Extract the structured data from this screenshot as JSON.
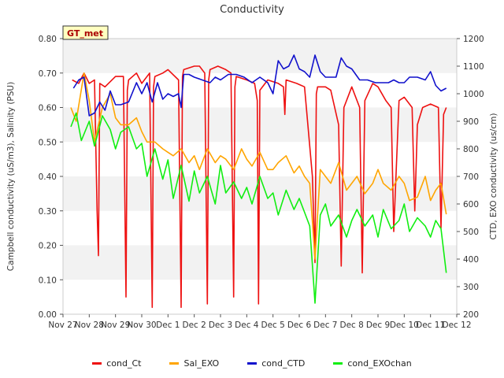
{
  "chart_data": {
    "type": "line",
    "title": "Conductivity",
    "badge": "GT_met",
    "ylabel_left": "Campbell conductivity (uS/m3), Salinity (PSU)",
    "ylabel_right": "CTD, EXO conductivity (us/cm)",
    "ylim_left": [
      0.0,
      0.8
    ],
    "ylim_right": [
      200,
      1200
    ],
    "yticks_left": [
      "0.00",
      "0.10",
      "0.20",
      "0.30",
      "0.40",
      "0.50",
      "0.60",
      "0.70",
      "0.80"
    ],
    "yticks_right": [
      "200",
      "300",
      "400",
      "500",
      "600",
      "700",
      "800",
      "900",
      "1000",
      "1100",
      "1200"
    ],
    "xlim": [
      0,
      15
    ],
    "xticks": [
      "Nov 27",
      "Nov 28",
      "Nov 29",
      "Nov 30",
      "Dec 1",
      "Dec 2",
      "Dec 3",
      "Dec 4",
      "Dec 5",
      "Dec 6",
      "Dec 7",
      "Dec 8",
      "Dec 9",
      "Dec 10",
      "Dec 11",
      "Dec 12"
    ],
    "grid": "horizontal bands",
    "legend_position": "bottom",
    "series": [
      {
        "name": "cond_Ct",
        "axis": "left",
        "color": "#ee1111",
        "x": [
          0.35,
          0.6,
          0.8,
          1.0,
          1.2,
          1.3,
          1.35,
          1.4,
          1.6,
          2.0,
          2.3,
          2.4,
          2.45,
          2.5,
          2.8,
          3.0,
          3.3,
          3.4,
          3.45,
          3.5,
          3.8,
          4.0,
          4.4,
          4.5,
          4.55,
          4.6,
          5.0,
          5.2,
          5.4,
          5.5,
          5.55,
          5.6,
          5.9,
          6.2,
          6.4,
          6.5,
          6.55,
          6.6,
          7.0,
          7.3,
          7.4,
          7.45,
          7.5,
          7.8,
          8.2,
          8.4,
          8.45,
          8.5,
          8.9,
          9.2,
          9.5,
          9.6,
          9.65,
          9.7,
          10.0,
          10.2,
          10.5,
          10.6,
          10.7,
          11.0,
          11.3,
          11.4,
          11.5,
          11.8,
          12.0,
          12.3,
          12.5,
          12.6,
          12.8,
          13.0,
          13.3,
          13.4,
          13.5,
          13.7,
          14.0,
          14.3,
          14.4,
          14.5,
          14.6
        ],
        "y": [
          0.68,
          0.67,
          0.7,
          0.67,
          0.68,
          0.3,
          0.17,
          0.67,
          0.66,
          0.69,
          0.69,
          0.05,
          0.65,
          0.68,
          0.7,
          0.67,
          0.7,
          0.02,
          0.66,
          0.69,
          0.7,
          0.71,
          0.68,
          0.02,
          0.69,
          0.71,
          0.72,
          0.72,
          0.7,
          0.03,
          0.68,
          0.71,
          0.72,
          0.71,
          0.7,
          0.05,
          0.66,
          0.69,
          0.68,
          0.67,
          0.62,
          0.03,
          0.65,
          0.68,
          0.67,
          0.66,
          0.58,
          0.68,
          0.67,
          0.66,
          0.4,
          0.15,
          0.64,
          0.66,
          0.66,
          0.65,
          0.55,
          0.14,
          0.6,
          0.66,
          0.6,
          0.12,
          0.62,
          0.67,
          0.66,
          0.62,
          0.6,
          0.24,
          0.62,
          0.63,
          0.6,
          0.3,
          0.55,
          0.6,
          0.61,
          0.6,
          0.25,
          0.58,
          0.6
        ]
      },
      {
        "name": "Sal_EXO",
        "axis": "left",
        "color": "#ffa500",
        "x": [
          0.3,
          0.5,
          0.8,
          1.0,
          1.2,
          1.5,
          1.8,
          2.0,
          2.2,
          2.5,
          2.8,
          3.0,
          3.2,
          3.5,
          3.8,
          4.0,
          4.2,
          4.5,
          4.8,
          5.0,
          5.2,
          5.5,
          5.8,
          6.0,
          6.2,
          6.5,
          6.8,
          7.0,
          7.2,
          7.5,
          7.8,
          8.0,
          8.2,
          8.5,
          8.8,
          9.0,
          9.2,
          9.4,
          9.6,
          9.8,
          10.0,
          10.2,
          10.5,
          10.8,
          11.0,
          11.2,
          11.5,
          11.8,
          12.0,
          12.2,
          12.5,
          12.8,
          13.0,
          13.2,
          13.5,
          13.8,
          14.0,
          14.2,
          14.4,
          14.6
        ],
        "y": [
          0.6,
          0.56,
          0.7,
          0.62,
          0.5,
          0.6,
          0.64,
          0.57,
          0.55,
          0.55,
          0.57,
          0.53,
          0.5,
          0.5,
          0.48,
          0.47,
          0.46,
          0.48,
          0.44,
          0.46,
          0.42,
          0.48,
          0.44,
          0.46,
          0.45,
          0.42,
          0.48,
          0.45,
          0.43,
          0.47,
          0.42,
          0.42,
          0.44,
          0.46,
          0.41,
          0.43,
          0.4,
          0.38,
          0.16,
          0.42,
          0.4,
          0.38,
          0.44,
          0.36,
          0.38,
          0.4,
          0.35,
          0.38,
          0.42,
          0.38,
          0.36,
          0.4,
          0.38,
          0.33,
          0.34,
          0.4,
          0.33,
          0.36,
          0.38,
          0.29
        ]
      },
      {
        "name": "cond_CTD",
        "axis": "right",
        "color": "#1111cc",
        "x": [
          0.4,
          0.6,
          0.8,
          1.0,
          1.2,
          1.4,
          1.6,
          1.8,
          2.0,
          2.2,
          2.5,
          2.8,
          3.0,
          3.2,
          3.4,
          3.6,
          3.8,
          4.0,
          4.2,
          4.4,
          4.5,
          4.6,
          4.8,
          5.0,
          5.3,
          5.6,
          5.8,
          6.0,
          6.3,
          6.6,
          6.9,
          7.2,
          7.5,
          7.8,
          8.0,
          8.2,
          8.4,
          8.6,
          8.8,
          9.0,
          9.2,
          9.4,
          9.6,
          9.8,
          10.0,
          10.2,
          10.4,
          10.6,
          10.8,
          11.0,
          11.3,
          11.6,
          11.9,
          12.2,
          12.4,
          12.6,
          12.8,
          13.0,
          13.2,
          13.5,
          13.8,
          14.0,
          14.2,
          14.4,
          14.6
        ],
        "y": [
          1020,
          1050,
          1060,
          920,
          930,
          970,
          940,
          1010,
          960,
          960,
          970,
          1040,
          1000,
          1040,
          970,
          1040,
          980,
          1000,
          990,
          1000,
          950,
          1070,
          1070,
          1060,
          1050,
          1040,
          1060,
          1050,
          1070,
          1070,
          1060,
          1040,
          1060,
          1040,
          1000,
          1120,
          1090,
          1100,
          1140,
          1090,
          1080,
          1060,
          1140,
          1080,
          1060,
          1060,
          1060,
          1130,
          1100,
          1090,
          1050,
          1050,
          1040,
          1040,
          1040,
          1050,
          1040,
          1040,
          1060,
          1060,
          1050,
          1080,
          1030,
          1010,
          1020
        ]
      },
      {
        "name": "cond_EXOchan",
        "axis": "right",
        "color": "#11ee11",
        "x": [
          0.3,
          0.5,
          0.7,
          1.0,
          1.2,
          1.5,
          1.8,
          2.0,
          2.2,
          2.5,
          2.8,
          3.0,
          3.2,
          3.5,
          3.8,
          4.0,
          4.2,
          4.5,
          4.8,
          5.0,
          5.2,
          5.5,
          5.8,
          6.0,
          6.2,
          6.5,
          6.8,
          7.0,
          7.2,
          7.5,
          7.8,
          8.0,
          8.2,
          8.5,
          8.8,
          9.0,
          9.2,
          9.4,
          9.6,
          9.8,
          10.0,
          10.2,
          10.5,
          10.8,
          11.0,
          11.2,
          11.5,
          11.8,
          12.0,
          12.2,
          12.5,
          12.8,
          13.0,
          13.2,
          13.5,
          13.8,
          14.0,
          14.2,
          14.4,
          14.6
        ],
        "y": [
          880,
          930,
          830,
          900,
          810,
          920,
          870,
          800,
          860,
          880,
          800,
          820,
          700,
          800,
          690,
          760,
          620,
          740,
          610,
          720,
          640,
          700,
          600,
          740,
          640,
          680,
          620,
          660,
          600,
          700,
          620,
          640,
          560,
          650,
          580,
          620,
          570,
          520,
          240,
          560,
          600,
          520,
          560,
          480,
          540,
          580,
          520,
          560,
          480,
          580,
          510,
          540,
          600,
          500,
          550,
          520,
          480,
          540,
          510,
          350
        ]
      }
    ]
  }
}
